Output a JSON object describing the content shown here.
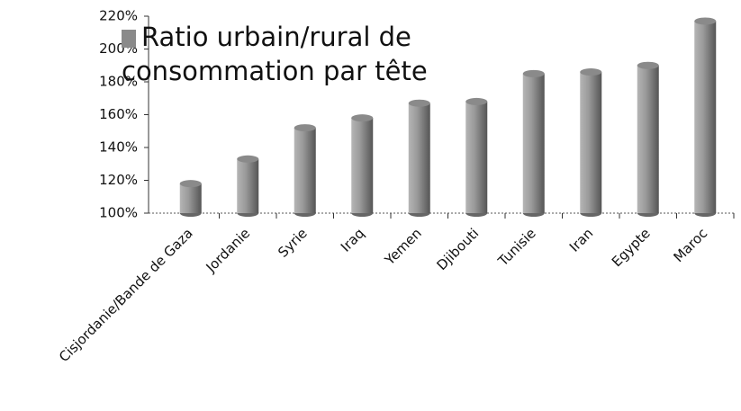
{
  "chart_data": {
    "type": "bar",
    "categories": [
      "Cisjordanie/Bande de Gaza",
      "Jordanie",
      "Syrie",
      "Iraq",
      "Yemen",
      "Djibouti",
      "Tunisie",
      "Iran",
      "Egypte",
      "Maroc"
    ],
    "series": [
      {
        "name": "Ratio urbain/rural de consommation par tête",
        "color": "#8a8a8a",
        "values": [
          118,
          133,
          152,
          158,
          167,
          168,
          185,
          186,
          190,
          217
        ]
      }
    ],
    "ylim": [
      100,
      220
    ],
    "yticks": [
      {
        "value": 100,
        "label": "100%"
      },
      {
        "value": 120,
        "label": "120%"
      },
      {
        "value": 140,
        "label": "140%"
      },
      {
        "value": 160,
        "label": "160%"
      },
      {
        "value": 180,
        "label": "180%"
      },
      {
        "value": 200,
        "label": "200%"
      },
      {
        "value": 220,
        "label": "220%"
      }
    ],
    "legend": "top-left"
  }
}
